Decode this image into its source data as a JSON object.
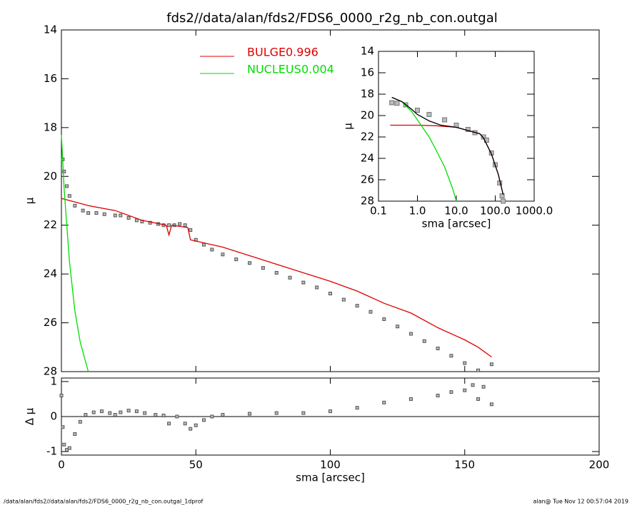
{
  "footer": {
    "left": "/data/alan/fds2//data/alan/fds2/FDS6_0000_r2g_nb_con.outgal_1dprof",
    "right": "alan@  Tue Nov 12 00:57:04 2019"
  },
  "chart_data": [
    {
      "type": "line",
      "title": "fds2//data/alan/fds2/FDS6_0000_r2g_nb_con.outgal",
      "ylabel": "μ",
      "xlim": [
        0,
        200
      ],
      "ylim": [
        28,
        14
      ],
      "yticks": [
        14,
        16,
        18,
        20,
        22,
        24,
        26,
        28
      ],
      "series": [
        {
          "mark": "square",
          "color": "#555555",
          "x": [
            0.5,
            1,
            2,
            3,
            5,
            8,
            10,
            13,
            16,
            20,
            22,
            25,
            28,
            30,
            33,
            36,
            38,
            40,
            42,
            44,
            46,
            48,
            50,
            53,
            56,
            60,
            65,
            70,
            75,
            80,
            85,
            90,
            95,
            100,
            105,
            110,
            115,
            120,
            125,
            130,
            135,
            140,
            145,
            150,
            155,
            160
          ],
          "values": [
            19.3,
            19.8,
            20.4,
            20.8,
            21.2,
            21.4,
            21.5,
            21.5,
            21.55,
            21.6,
            21.6,
            21.7,
            21.8,
            21.85,
            21.9,
            21.95,
            22.0,
            22.0,
            22.0,
            21.95,
            22.0,
            22.2,
            22.6,
            22.8,
            23.0,
            23.2,
            23.4,
            23.55,
            23.75,
            23.95,
            24.15,
            24.35,
            24.55,
            24.8,
            25.05,
            25.3,
            25.55,
            25.85,
            26.15,
            26.45,
            26.75,
            27.05,
            27.35,
            27.65,
            27.95,
            27.7
          ]
        },
        {
          "name": "BULGE",
          "fraction": 0.996,
          "color": "#dd0000",
          "x": [
            0,
            10,
            20,
            30,
            39,
            40,
            41,
            47,
            48,
            60,
            80,
            100,
            110,
            120,
            130,
            140,
            150,
            155,
            160
          ],
          "values": [
            20.9,
            21.2,
            21.4,
            21.8,
            22.0,
            22.4,
            22.0,
            22.1,
            22.6,
            22.9,
            23.6,
            24.3,
            24.7,
            25.2,
            25.6,
            26.2,
            26.7,
            27.0,
            27.4
          ]
        },
        {
          "name": "NUCLEUS",
          "fraction": 0.004,
          "color": "#00dd00",
          "x": [
            0,
            1,
            2,
            3,
            5,
            7,
            9,
            10
          ],
          "values": [
            18.3,
            20.5,
            22.0,
            23.5,
            25.5,
            26.8,
            27.6,
            28.0
          ]
        }
      ]
    },
    {
      "type": "scatter",
      "xlabel": "sma [arcsec]",
      "ylabel": "Δ μ",
      "xlim": [
        0,
        200
      ],
      "xticks": [
        0,
        50,
        100,
        150,
        200
      ],
      "ylim": [
        -1.1,
        1.1
      ],
      "yticks": [
        -1,
        0,
        1
      ],
      "reference_line": 0,
      "series": [
        {
          "mark": "square",
          "color": "#555555",
          "x": [
            0,
            0.5,
            1,
            2,
            3,
            5,
            7,
            9,
            12,
            15,
            18,
            20,
            22,
            25,
            28,
            31,
            35,
            38,
            40,
            43,
            46,
            48,
            50,
            53,
            56,
            60,
            70,
            80,
            90,
            100,
            110,
            120,
            130,
            140,
            145,
            150,
            153,
            155,
            157,
            160
          ],
          "values": [
            0.6,
            -0.3,
            -0.8,
            -0.95,
            -0.9,
            -0.5,
            -0.15,
            0.05,
            0.12,
            0.15,
            0.1,
            0.05,
            0.12,
            0.17,
            0.15,
            0.1,
            0.05,
            0.03,
            -0.2,
            0.0,
            -0.2,
            -0.35,
            -0.25,
            -0.1,
            0.0,
            0.05,
            0.08,
            0.1,
            0.1,
            0.15,
            0.25,
            0.4,
            0.5,
            0.6,
            0.7,
            0.75,
            0.9,
            0.5,
            0.85,
            0.35
          ]
        }
      ]
    },
    {
      "type": "line",
      "xlabel": "sma [arcsec]",
      "ylabel": "μ",
      "xlog": true,
      "xlim": [
        0.1,
        1000
      ],
      "xticks": [
        0.1,
        {
          "value": 1,
          "label": "1.0"
        },
        {
          "value": 10,
          "label": "10.0"
        },
        {
          "value": 100,
          "label": "100.0"
        },
        {
          "value": 1000,
          "label": "1000.0"
        }
      ],
      "ylim": [
        28,
        14
      ],
      "yticks": [
        14,
        16,
        18,
        20,
        22,
        24,
        26,
        28
      ],
      "series": [
        {
          "mark": "square",
          "color": "#777777",
          "x": [
            0.22,
            0.3,
            0.5,
            1,
            2,
            5,
            10,
            20,
            30,
            50,
            60,
            80,
            100,
            130,
            150,
            160
          ],
          "values": [
            18.8,
            18.85,
            19.0,
            19.5,
            19.9,
            20.4,
            20.9,
            21.3,
            21.6,
            22.0,
            22.3,
            23.5,
            24.6,
            26.3,
            27.5,
            28.0
          ]
        },
        {
          "color": "#dd0000",
          "x": [
            0.2,
            1,
            3,
            10,
            20,
            40,
            50,
            80,
            120,
            160
          ],
          "values": [
            20.9,
            20.9,
            20.95,
            21.1,
            21.4,
            21.7,
            22.1,
            23.6,
            25.5,
            27.4
          ]
        },
        {
          "color": "#00dd00",
          "x": [
            0.22,
            0.4,
            0.7,
            1,
            2,
            3,
            5,
            8,
            10
          ],
          "values": [
            18.3,
            18.7,
            19.6,
            20.4,
            22.0,
            23.2,
            24.8,
            26.8,
            28.0
          ]
        },
        {
          "color": "#000000",
          "x": [
            0.22,
            0.4,
            0.7,
            1,
            2,
            4,
            10,
            20,
            40,
            50,
            80,
            120,
            160
          ],
          "values": [
            18.3,
            18.7,
            19.4,
            19.9,
            20.5,
            20.9,
            21.1,
            21.4,
            21.7,
            22.1,
            23.6,
            25.5,
            27.4
          ]
        }
      ]
    }
  ]
}
